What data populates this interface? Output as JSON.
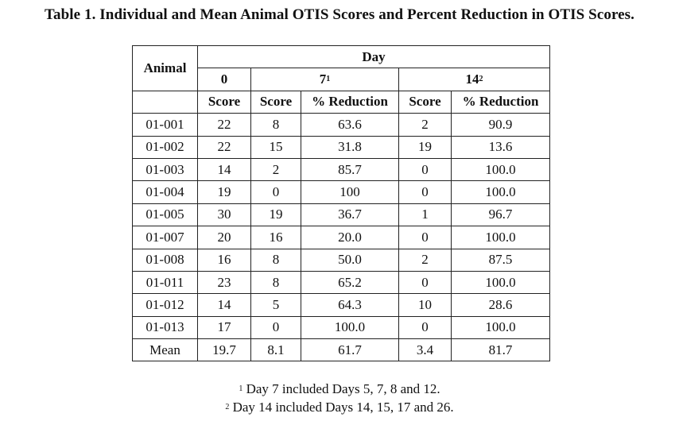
{
  "title": "Table 1. Individual and Mean Animal OTIS Scores and Percent Reduction in OTIS Scores.",
  "header": {
    "animal": "Animal",
    "day": "Day",
    "day0": "0",
    "day7": "7",
    "day7_sup": "1",
    "day14": "14",
    "day14_sup": "2",
    "score": "Score",
    "pct_reduction": "% Reduction"
  },
  "rows": [
    {
      "animal": "01-001",
      "d0": "22",
      "d7_score": "8",
      "d7_pct": "63.6",
      "d14_score": "2",
      "d14_pct": "90.9"
    },
    {
      "animal": "01-002",
      "d0": "22",
      "d7_score": "15",
      "d7_pct": "31.8",
      "d14_score": "19",
      "d14_pct": "13.6"
    },
    {
      "animal": "01-003",
      "d0": "14",
      "d7_score": "2",
      "d7_pct": "85.7",
      "d14_score": "0",
      "d14_pct": "100.0"
    },
    {
      "animal": "01-004",
      "d0": "19",
      "d7_score": "0",
      "d7_pct": "100",
      "d14_score": "0",
      "d14_pct": "100.0"
    },
    {
      "animal": "01-005",
      "d0": "30",
      "d7_score": "19",
      "d7_pct": "36.7",
      "d14_score": "1",
      "d14_pct": "96.7"
    },
    {
      "animal": "01-007",
      "d0": "20",
      "d7_score": "16",
      "d7_pct": "20.0",
      "d14_score": "0",
      "d14_pct": "100.0"
    },
    {
      "animal": "01-008",
      "d0": "16",
      "d7_score": "8",
      "d7_pct": "50.0",
      "d14_score": "2",
      "d14_pct": "87.5"
    },
    {
      "animal": "01-011",
      "d0": "23",
      "d7_score": "8",
      "d7_pct": "65.2",
      "d14_score": "0",
      "d14_pct": "100.0"
    },
    {
      "animal": "01-012",
      "d0": "14",
      "d7_score": "5",
      "d7_pct": "64.3",
      "d14_score": "10",
      "d14_pct": "28.6"
    },
    {
      "animal": "01-013",
      "d0": "17",
      "d7_score": "0",
      "d7_pct": "100.0",
      "d14_score": "0",
      "d14_pct": "100.0"
    },
    {
      "animal": "Mean",
      "d0": "19.7",
      "d7_score": "8.1",
      "d7_pct": "61.7",
      "d14_score": "3.4",
      "d14_pct": "81.7"
    }
  ],
  "footnotes": [
    {
      "marker": "1",
      "text": "Day 7 included Days 5, 7, 8 and 12."
    },
    {
      "marker": "2",
      "text": "Day 14 included Days 14, 15, 17 and 26."
    }
  ]
}
